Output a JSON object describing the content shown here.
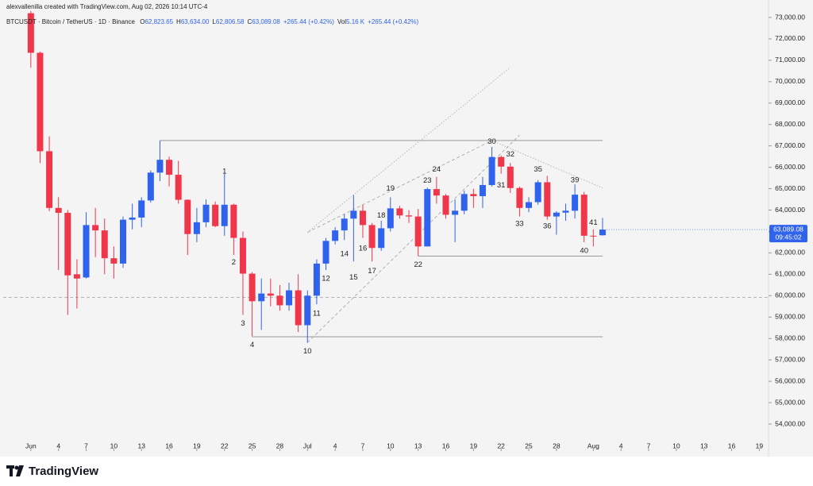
{
  "attribution": "alexvallenilla created with TradingView.com, Aug 02, 2026 10:14 UTC-4",
  "brand": "TradingView",
  "chart_data": {
    "type": "candlestick",
    "title": "BTCUSDT · Bitcoin / TetherUS · 1D · Binance",
    "legend": [
      {
        "key": "O",
        "value": "62,823.65"
      },
      {
        "key": "H",
        "value": "63,634.00"
      },
      {
        "key": "L",
        "value": "62,806.58"
      },
      {
        "key": "C",
        "value": "63,089.08"
      }
    ],
    "change": "+265.44 (+0.42%)",
    "volume": {
      "key": "Vol",
      "value": "5.16 K"
    },
    "volume_change": "+265.44 (+0.42%)",
    "last_price_label": "63,089.08",
    "countdown": "09:45:02",
    "colors": {
      "up": "#2f63ee",
      "down": "#f0364a"
    },
    "x": [
      "2026-06-01",
      "2026-06-02",
      "2026-06-03",
      "2026-06-04",
      "2026-06-05",
      "2026-06-06",
      "2026-06-07",
      "2026-06-08",
      "2026-06-09",
      "2026-06-10",
      "2026-06-11",
      "2026-06-12",
      "2026-06-13",
      "2026-06-14",
      "2026-06-15",
      "2026-06-16",
      "2026-06-17",
      "2026-06-18",
      "2026-06-19",
      "2026-06-20",
      "2026-06-21",
      "2026-06-22",
      "2026-06-23",
      "2026-06-24",
      "2026-06-25",
      "2026-06-26",
      "2026-06-27",
      "2026-06-28",
      "2026-06-29",
      "2026-06-30",
      "2026-07-01",
      "2026-07-02",
      "2026-07-03",
      "2026-07-04",
      "2026-07-05",
      "2026-07-06",
      "2026-07-07",
      "2026-07-08",
      "2026-07-09",
      "2026-07-10",
      "2026-07-11",
      "2026-07-12",
      "2026-07-13",
      "2026-07-14",
      "2026-07-15",
      "2026-07-16",
      "2026-07-17",
      "2026-07-18",
      "2026-07-19",
      "2026-07-20",
      "2026-07-21",
      "2026-07-22",
      "2026-07-23",
      "2026-07-24",
      "2026-07-25",
      "2026-07-26",
      "2026-07-27",
      "2026-07-28",
      "2026-07-29",
      "2026-07-30",
      "2026-07-31",
      "2026-08-01",
      "2026-08-02"
    ],
    "open": [
      73200,
      71350,
      66750,
      64100,
      63870,
      61000,
      60850,
      63300,
      63050,
      61750,
      61500,
      63550,
      63650,
      64450,
      65750,
      66350,
      65650,
      64480,
      62880,
      63430,
      64250,
      63250,
      64250,
      62700,
      61030,
      59740,
      60100,
      60000,
      59550,
      60250,
      58620,
      60000,
      61500,
      62560,
      63050,
      63600,
      63970,
      63300,
      62230,
      63150,
      64080,
      63750,
      63700,
      62300,
      64980,
      64680,
      63780,
      63970,
      64750,
      64650,
      65170,
      66480,
      66030,
      65030,
      64100,
      64370,
      65300,
      63700,
      63880,
      63970,
      64720,
      62800,
      62823.65
    ],
    "high": [
      73300,
      71400,
      67450,
      64600,
      64000,
      61700,
      63900,
      64100,
      63600,
      62300,
      63700,
      64300,
      64600,
      65850,
      67250,
      66500,
      66300,
      64500,
      64100,
      64500,
      64400,
      65700,
      64300,
      63000,
      61100,
      60800,
      60800,
      60500,
      60600,
      61000,
      60250,
      61700,
      62700,
      63200,
      63800,
      64700,
      64250,
      63400,
      63500,
      64600,
      64200,
      64000,
      64050,
      65050,
      65550,
      64750,
      64500,
      64900,
      65000,
      65550,
      66950,
      66550,
      66200,
      65100,
      64600,
      65400,
      65600,
      63950,
      64300,
      65200,
      64850,
      63100,
      63634
    ],
    "low": [
      70650,
      66200,
      63950,
      61200,
      59100,
      59400,
      60800,
      61800,
      61000,
      60800,
      61300,
      63100,
      63200,
      64350,
      65350,
      65100,
      64300,
      61900,
      62500,
      63200,
      63200,
      62800,
      61900,
      59100,
      58100,
      58400,
      59500,
      59300,
      59300,
      58300,
      57800,
      59600,
      61200,
      62400,
      62600,
      61600,
      62700,
      61600,
      62100,
      63000,
      63600,
      63400,
      61850,
      62300,
      64300,
      63600,
      62500,
      63800,
      64100,
      64100,
      65100,
      65700,
      64800,
      63700,
      63900,
      64250,
      63550,
      62850,
      63500,
      63600,
      62500,
      62300,
      62806.58
    ],
    "close": [
      71350,
      66750,
      64100,
      63870,
      60950,
      60800,
      63300,
      63050,
      61750,
      61500,
      63550,
      63650,
      64450,
      65750,
      66350,
      65650,
      64480,
      62880,
      63430,
      64250,
      63250,
      64250,
      62700,
      61030,
      59740,
      60100,
      60000,
      59550,
      60250,
      58620,
      60000,
      61500,
      62560,
      63050,
      63600,
      63970,
      63300,
      62230,
      63150,
      64080,
      63750,
      63700,
      62300,
      64980,
      64680,
      63780,
      63970,
      64750,
      64650,
      65170,
      66480,
      66030,
      65030,
      64100,
      64370,
      65300,
      63700,
      63880,
      63970,
      64720,
      62800,
      62780,
      63089.08
    ],
    "xlim": [
      "2026-05-29",
      "2026-08-20"
    ],
    "ylim": [
      52850,
      73260
    ],
    "yticks": [
      {
        "value": 54000,
        "label": "54,000.00"
      },
      {
        "value": 55000,
        "label": "55,000.00"
      },
      {
        "value": 56000,
        "label": "56,000.00"
      },
      {
        "value": 57000,
        "label": "57,000.00"
      },
      {
        "value": 58000,
        "label": "58,000.00"
      },
      {
        "value": 59000,
        "label": "59,000.00"
      },
      {
        "value": 60000,
        "label": "60,000.00"
      },
      {
        "value": 61000,
        "label": "61,000.00"
      },
      {
        "value": 62000,
        "label": "62,000.00"
      },
      {
        "value": 63000,
        "label": "63,000.00"
      },
      {
        "value": 64000,
        "label": "64,000.00"
      },
      {
        "value": 65000,
        "label": "65,000.00"
      },
      {
        "value": 66000,
        "label": "66,000.00"
      },
      {
        "value": 67000,
        "label": "67,000.00"
      },
      {
        "value": 68000,
        "label": "68,000.00"
      },
      {
        "value": 69000,
        "label": "69,000.00"
      },
      {
        "value": 70000,
        "label": "70,000.00"
      },
      {
        "value": 71000,
        "label": "71,000.00"
      },
      {
        "value": 72000,
        "label": "72,000.00"
      },
      {
        "value": 73000,
        "label": "73,000.00"
      }
    ],
    "xticks": [
      {
        "value": "2026-06-01",
        "label": "Jun"
      },
      {
        "value": "2026-06-04",
        "label": "4"
      },
      {
        "value": "2026-06-07",
        "label": "7"
      },
      {
        "value": "2026-06-10",
        "label": "10"
      },
      {
        "value": "2026-06-13",
        "label": "13"
      },
      {
        "value": "2026-06-16",
        "label": "16"
      },
      {
        "value": "2026-06-19",
        "label": "19"
      },
      {
        "value": "2026-06-22",
        "label": "22"
      },
      {
        "value": "2026-06-25",
        "label": "25"
      },
      {
        "value": "2026-06-28",
        "label": "28"
      },
      {
        "value": "2026-07-01",
        "label": "Jul"
      },
      {
        "value": "2026-07-04",
        "label": "4"
      },
      {
        "value": "2026-07-07",
        "label": "7"
      },
      {
        "value": "2026-07-10",
        "label": "10"
      },
      {
        "value": "2026-07-13",
        "label": "13"
      },
      {
        "value": "2026-07-16",
        "label": "16"
      },
      {
        "value": "2026-07-19",
        "label": "19"
      },
      {
        "value": "2026-07-22",
        "label": "22"
      },
      {
        "value": "2026-07-25",
        "label": "25"
      },
      {
        "value": "2026-07-28",
        "label": "28"
      },
      {
        "value": "2026-08-01",
        "label": "Aug"
      },
      {
        "value": "2026-08-04",
        "label": "4"
      },
      {
        "value": "2026-08-07",
        "label": "7"
      },
      {
        "value": "2026-08-10",
        "label": "10"
      },
      {
        "value": "2026-08-13",
        "label": "13"
      },
      {
        "value": "2026-08-16",
        "label": "16"
      },
      {
        "value": "2026-08-19",
        "label": "19"
      }
    ],
    "annotations": [
      {
        "text": "1",
        "x": "2026-06-22",
        "y": 65800
      },
      {
        "text": "2",
        "x": "2026-06-23",
        "y": 61550
      },
      {
        "text": "3",
        "x": "2026-06-24",
        "y": 58700
      },
      {
        "text": "4",
        "x": "2026-06-25",
        "y": 57700
      },
      {
        "text": "10",
        "x": "2026-07-01",
        "y": 57400
      },
      {
        "text": "11",
        "x": "2026-07-02",
        "y": 59150
      },
      {
        "text": "12",
        "x": "2026-07-03",
        "y": 60800
      },
      {
        "text": "14",
        "x": "2026-07-05",
        "y": 61950
      },
      {
        "text": "15",
        "x": "2026-07-06",
        "y": 60850
      },
      {
        "text": "16",
        "x": "2026-07-07",
        "y": 62200
      },
      {
        "text": "17",
        "x": "2026-07-08",
        "y": 61150
      },
      {
        "text": "18",
        "x": "2026-07-09",
        "y": 63750
      },
      {
        "text": "19",
        "x": "2026-07-10",
        "y": 65000
      },
      {
        "text": "22",
        "x": "2026-07-13",
        "y": 61450
      },
      {
        "text": "23",
        "x": "2026-07-14",
        "y": 65370
      },
      {
        "text": "24",
        "x": "2026-07-15",
        "y": 65900
      },
      {
        "text": "30",
        "x": "2026-07-21",
        "y": 67200
      },
      {
        "text": "31",
        "x": "2026-07-22",
        "y": 65150
      },
      {
        "text": "32",
        "x": "2026-07-23",
        "y": 66600
      },
      {
        "text": "33",
        "x": "2026-07-24",
        "y": 63350
      },
      {
        "text": "35",
        "x": "2026-07-26",
        "y": 65900
      },
      {
        "text": "36",
        "x": "2026-07-27",
        "y": 63250
      },
      {
        "text": "39",
        "x": "2026-07-30",
        "y": 65400
      },
      {
        "text": "40",
        "x": "2026-07-31",
        "y": 62100
      },
      {
        "text": "41",
        "x": "2026-08-01",
        "y": 63400
      }
    ],
    "drawings": [
      {
        "style": "solid",
        "from": {
          "x": "2026-06-15",
          "y": 67250
        },
        "to": {
          "x": "2026-08-02",
          "y": 67250
        }
      },
      {
        "style": "solid",
        "from": {
          "x": "2026-06-25",
          "y": 58080
        },
        "to": {
          "x": "2026-08-02",
          "y": 58080
        }
      },
      {
        "style": "solid",
        "from": {
          "x": "2026-07-13",
          "y": 61850
        },
        "to": {
          "x": "2026-08-02",
          "y": 61850
        }
      },
      {
        "style": "dashed",
        "from": {
          "x": "2026-05-29",
          "y": 59920
        },
        "to": {
          "x": "2026-08-20",
          "y": 59920
        }
      },
      {
        "style": "dashed",
        "from": {
          "x": "2026-07-01",
          "y": 57810
        },
        "to": {
          "x": "2026-07-24",
          "y": 67500
        }
      },
      {
        "style": "dashed",
        "from": {
          "x": "2026-07-01",
          "y": 62960
        },
        "to": {
          "x": "2026-07-21",
          "y": 67250
        }
      },
      {
        "style": "dotted",
        "from": {
          "x": "2026-07-01",
          "y": 62960
        },
        "to": {
          "x": "2026-07-23",
          "y": 70670
        }
      },
      {
        "style": "dotted",
        "from": {
          "x": "2026-07-21",
          "y": 67250
        },
        "to": {
          "x": "2026-08-02",
          "y": 65030
        }
      }
    ]
  }
}
